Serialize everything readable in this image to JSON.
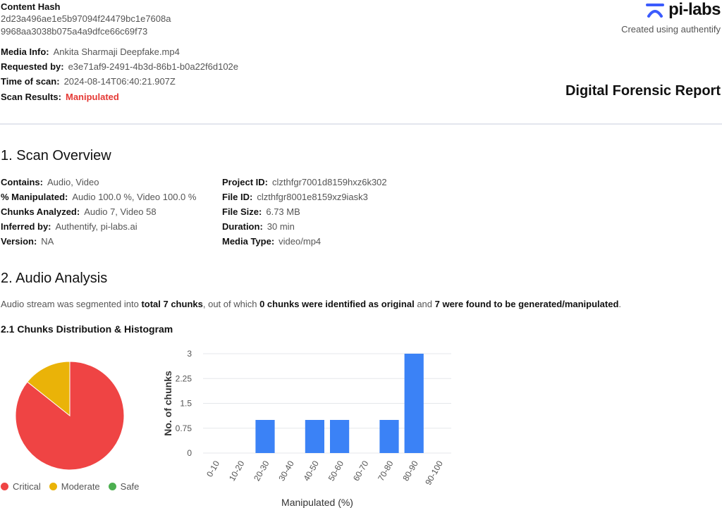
{
  "header": {
    "hash_label": "Content Hash",
    "hash_line1": "2d23a496ae1e5b97094f24479bc1e7608a",
    "hash_line2": "9968aa3038b075a4a9dfce66c69f73",
    "media_info_label": "Media Info:",
    "media_info_value": "Ankita Sharmaji Deepfake.mp4",
    "requested_by_label": "Requested by:",
    "requested_by_value": "e3e71af9-2491-4b3d-86b1-b0a22f6d102e",
    "time_label": "Time of scan:",
    "time_value": "2024-08-14T06:40:21.907Z",
    "results_label": "Scan Results:",
    "results_value": "Manipulated",
    "brand": "pi-labs",
    "created": "Created using authentify",
    "report_title": "Digital Forensic Report"
  },
  "overview": {
    "title": "1. Scan Overview",
    "left": [
      {
        "label": "Contains:",
        "value": "Audio, Video"
      },
      {
        "label": "% Manipulated:",
        "value": "Audio 100.0 %, Video 100.0 %"
      },
      {
        "label": "Chunks Analyzed:",
        "value": "Audio 7, Video 58"
      },
      {
        "label": "Inferred by:",
        "value": "Authentify, pi-labs.ai"
      },
      {
        "label": "Version:",
        "value": "NA"
      }
    ],
    "right": [
      {
        "label": "Project ID:",
        "value": "clzthfgr7001d8159hxz6k302"
      },
      {
        "label": "File ID:",
        "value": "clzthfgr8001e8159xz9iask3"
      },
      {
        "label": "File Size:",
        "value": "6.73 MB"
      },
      {
        "label": "Duration:",
        "value": "30 min"
      },
      {
        "label": "Media Type:",
        "value": "video/mp4"
      }
    ]
  },
  "audio": {
    "title": "2. Audio Analysis",
    "para_1": "Audio stream was segmented into ",
    "para_2": "total 7 chunks",
    "para_3": ", out of which ",
    "para_4": "0 chunks were identified as original",
    "para_5": " and ",
    "para_6": "7 were found to be generated/manipulated",
    "para_7": ".",
    "subtitle": "2.1 Chunks Distribution & Histogram"
  },
  "legend": {
    "critical": "Critical",
    "moderate": "Moderate",
    "safe": "Safe",
    "critical_color": "#ef4444",
    "moderate_color": "#eab308",
    "safe_color": "#4caf50"
  },
  "chart_data": [
    {
      "type": "pie",
      "labels": [
        "Critical",
        "Moderate",
        "Safe"
      ],
      "values": [
        6,
        1,
        0
      ],
      "colors": [
        "#ef4444",
        "#eab308",
        "#4caf50"
      ],
      "legend": "bottom"
    },
    {
      "type": "bar",
      "categories": [
        "0-10",
        "10-20",
        "20-30",
        "30-40",
        "40-50",
        "50-60",
        "60-70",
        "70-80",
        "80-90",
        "90-100"
      ],
      "values": [
        0,
        0,
        1,
        0,
        1,
        1,
        0,
        1,
        3,
        0
      ],
      "xlabel": "Manipulated (%)",
      "ylabel": "No. of chunks",
      "ylim": [
        0,
        3
      ],
      "yticks": [
        "0",
        "0.75",
        "1.5",
        "2.25",
        "3"
      ],
      "grid": true,
      "color": "#3b82f6"
    }
  ]
}
